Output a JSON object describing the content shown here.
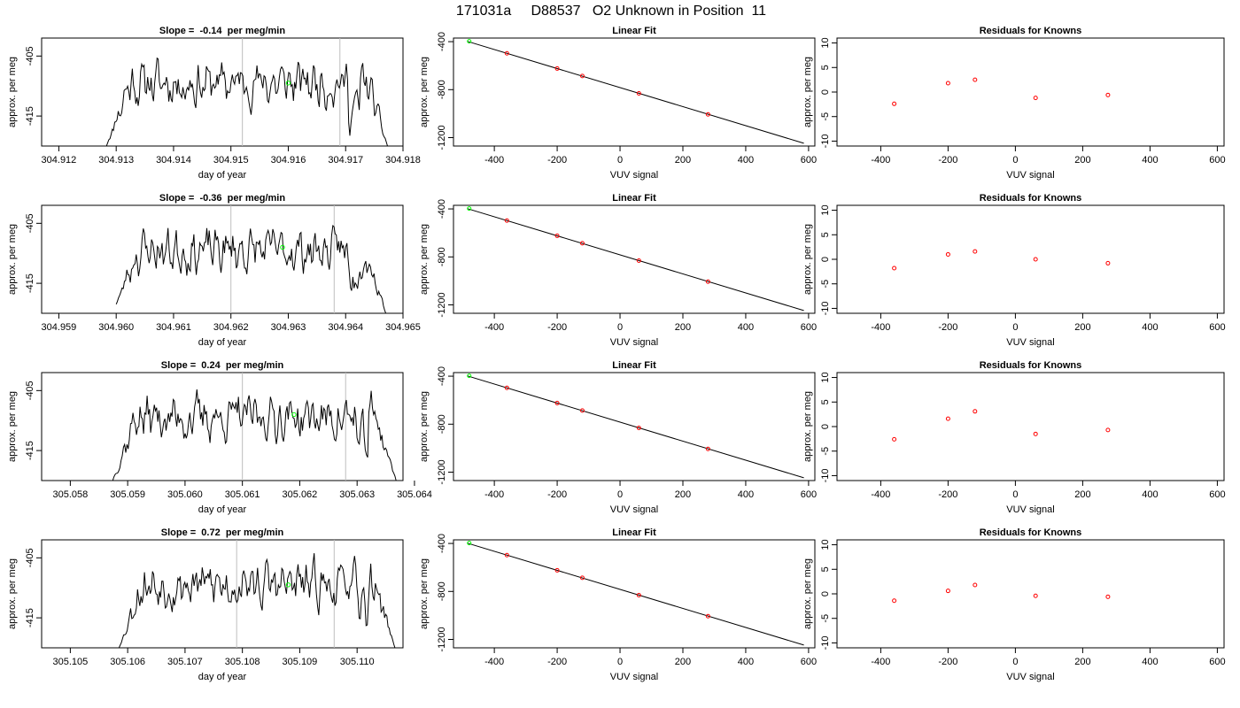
{
  "page_title": "171031a     D88537   O2 Unknown in Position  11",
  "chart_data": [
    {
      "type": "line",
      "row": 1,
      "column": "timeseries",
      "title": "Slope =  -0.14  per meg/min",
      "xlabel": "day of year",
      "ylabel": "approx. per meg",
      "xlim": [
        304.9117,
        304.918
      ],
      "ylim": [
        -420,
        -402
      ],
      "xticks": [
        "304.912",
        "304.913",
        "304.914",
        "304.915",
        "304.916",
        "304.917",
        "304.918"
      ],
      "yticks": [
        "-405",
        "-415"
      ],
      "vlines": [
        304.9152,
        304.9169
      ],
      "marker": {
        "x": 304.916,
        "y": -409.5
      },
      "x_start": 304.91283,
      "x_end": 304.91773,
      "y_start": -420,
      "y_end": -420,
      "n_points": 240,
      "seed": 11
    },
    {
      "type": "scatter",
      "row": 1,
      "column": "fit",
      "title": "Linear Fit",
      "xlabel": "VUV signal",
      "ylabel": "approx. per meg",
      "xlim": [
        -530,
        620
      ],
      "ylim": [
        -1270,
        -370
      ],
      "xticks": [
        "-400",
        "-200",
        "0",
        "200",
        "400",
        "600"
      ],
      "yticks": [
        "-400",
        "-800",
        "-1200"
      ],
      "fit_line": [
        [
          -485,
          -398
        ],
        [
          585,
          -1247
        ]
      ],
      "points": [
        [
          -360,
          -497
        ],
        [
          -200,
          -624
        ],
        [
          -120,
          -686
        ],
        [
          60,
          -831
        ],
        [
          280,
          -1006
        ]
      ],
      "marker": {
        "x": -480,
        "y": -397
      }
    },
    {
      "type": "scatter",
      "row": 1,
      "column": "residuals",
      "title": "Residuals for Knowns",
      "xlabel": "VUV signal",
      "ylabel": "approx. per meg",
      "xlim": [
        -530,
        620
      ],
      "ylim": [
        -11,
        11
      ],
      "xticks": [
        "-400",
        "-200",
        "0",
        "200",
        "400",
        "600"
      ],
      "yticks": [
        "10",
        "5",
        "0",
        "-5",
        "-10"
      ],
      "points": [
        [
          -360,
          -2.4
        ],
        [
          -200,
          1.8
        ],
        [
          -120,
          2.5
        ],
        [
          60,
          -1.2
        ],
        [
          275,
          -0.6
        ]
      ]
    },
    {
      "type": "line",
      "row": 2,
      "column": "timeseries",
      "title": "Slope =  -0.36  per meg/min",
      "xlabel": "day of year",
      "ylabel": "approx. per meg",
      "xlim": [
        304.9587,
        304.965
      ],
      "ylim": [
        -420,
        -402
      ],
      "xticks": [
        "304.959",
        "304.960",
        "304.961",
        "304.962",
        "304.963",
        "304.964",
        "304.965"
      ],
      "yticks": [
        "-405",
        "-415"
      ],
      "vlines": [
        304.962,
        304.9638
      ],
      "marker": {
        "x": 304.9629,
        "y": -409
      },
      "x_start": 304.96,
      "x_end": 304.9647,
      "y_start": -418.5,
      "y_end": -420,
      "n_points": 230,
      "seed": 23
    },
    {
      "type": "scatter",
      "row": 2,
      "column": "fit",
      "title": "Linear Fit",
      "xlabel": "VUV signal",
      "ylabel": "approx. per meg",
      "xlim": [
        -530,
        620
      ],
      "ylim": [
        -1270,
        -370
      ],
      "xticks": [
        "-400",
        "-200",
        "0",
        "200",
        "400",
        "600"
      ],
      "yticks": [
        "-400",
        "-800",
        "-1200"
      ],
      "fit_line": [
        [
          -485,
          -398
        ],
        [
          585,
          -1247
        ]
      ],
      "points": [
        [
          -360,
          -497
        ],
        [
          -200,
          -624
        ],
        [
          -120,
          -686
        ],
        [
          60,
          -831
        ],
        [
          280,
          -1006
        ]
      ],
      "marker": {
        "x": -480,
        "y": -397
      }
    },
    {
      "type": "scatter",
      "row": 2,
      "column": "residuals",
      "title": "Residuals for Knowns",
      "xlabel": "VUV signal",
      "ylabel": "approx. per meg",
      "xlim": [
        -530,
        620
      ],
      "ylim": [
        -11,
        11
      ],
      "xticks": [
        "-400",
        "-200",
        "0",
        "200",
        "400",
        "600"
      ],
      "yticks": [
        "10",
        "5",
        "0",
        "-5",
        "-10"
      ],
      "points": [
        [
          -360,
          -1.8
        ],
        [
          -200,
          1.0
        ],
        [
          -120,
          1.6
        ],
        [
          60,
          0.0
        ],
        [
          275,
          -0.8
        ]
      ]
    },
    {
      "type": "line",
      "row": 3,
      "column": "timeseries",
      "title": "Slope =  0.24  per meg/min",
      "xlabel": "day of year",
      "ylabel": "approx. per meg",
      "xlim": [
        305.0575,
        305.0638
      ],
      "ylim": [
        -420,
        -402
      ],
      "xticks": [
        "305.058",
        "305.059",
        "305.060",
        "305.061",
        "305.062",
        "305.063",
        "305.064"
      ],
      "yticks": [
        "-405",
        "-415"
      ],
      "vlines": [
        305.061,
        305.0628
      ],
      "marker": {
        "x": 305.0619,
        "y": -409
      },
      "x_start": 305.05874,
      "x_end": 305.06368,
      "y_start": -420,
      "y_end": -420,
      "n_points": 240,
      "seed": 37
    },
    {
      "type": "scatter",
      "row": 3,
      "column": "fit",
      "title": "Linear Fit",
      "xlabel": "VUV signal",
      "ylabel": "approx. per meg",
      "xlim": [
        -530,
        620
      ],
      "ylim": [
        -1270,
        -370
      ],
      "xticks": [
        "-400",
        "-200",
        "0",
        "200",
        "400",
        "600"
      ],
      "yticks": [
        "-400",
        "-800",
        "-1200"
      ],
      "fit_line": [
        [
          -485,
          -398
        ],
        [
          585,
          -1247
        ]
      ],
      "points": [
        [
          -360,
          -497
        ],
        [
          -200,
          -624
        ],
        [
          -120,
          -686
        ],
        [
          60,
          -831
        ],
        [
          280,
          -1006
        ]
      ],
      "marker": {
        "x": -480,
        "y": -397
      }
    },
    {
      "type": "scatter",
      "row": 3,
      "column": "residuals",
      "title": "Residuals for Knowns",
      "xlabel": "VUV signal",
      "ylabel": "approx. per meg",
      "xlim": [
        -530,
        620
      ],
      "ylim": [
        -11,
        11
      ],
      "xticks": [
        "-400",
        "-200",
        "0",
        "200",
        "400",
        "600"
      ],
      "yticks": [
        "10",
        "5",
        "0",
        "-5",
        "-10"
      ],
      "points": [
        [
          -360,
          -2.6
        ],
        [
          -200,
          1.6
        ],
        [
          -120,
          3.1
        ],
        [
          60,
          -1.5
        ],
        [
          275,
          -0.7
        ]
      ]
    },
    {
      "type": "line",
      "row": 4,
      "column": "timeseries",
      "title": "Slope =  0.72  per meg/min",
      "xlabel": "day of year",
      "ylabel": "approx. per meg",
      "xlim": [
        305.1045,
        305.1108
      ],
      "ylim": [
        -420,
        -402
      ],
      "xticks": [
        "305.105",
        "305.106",
        "305.107",
        "305.108",
        "305.109",
        "305.110"
      ],
      "yticks": [
        "-405",
        "-415"
      ],
      "vlines": [
        305.1079,
        305.1096
      ],
      "marker": {
        "x": 305.1088,
        "y": -409.5
      },
      "x_start": 305.10585,
      "x_end": 305.11066,
      "y_start": -420,
      "y_end": -420,
      "n_points": 240,
      "seed": 53
    },
    {
      "type": "scatter",
      "row": 4,
      "column": "fit",
      "title": "Linear Fit",
      "xlabel": "VUV signal",
      "ylabel": "approx. per meg",
      "xlim": [
        -530,
        620
      ],
      "ylim": [
        -1270,
        -370
      ],
      "xticks": [
        "-400",
        "-200",
        "0",
        "200",
        "400",
        "600"
      ],
      "yticks": [
        "-400",
        "-800",
        "-1200"
      ],
      "fit_line": [
        [
          -485,
          -398
        ],
        [
          585,
          -1247
        ]
      ],
      "points": [
        [
          -360,
          -497
        ],
        [
          -200,
          -624
        ],
        [
          -120,
          -686
        ],
        [
          60,
          -831
        ],
        [
          280,
          -1006
        ]
      ],
      "marker": {
        "x": -480,
        "y": -397
      }
    },
    {
      "type": "scatter",
      "row": 4,
      "column": "residuals",
      "title": "Residuals for Knowns",
      "xlabel": "VUV signal",
      "ylabel": "approx. per meg",
      "xlim": [
        -530,
        620
      ],
      "ylim": [
        -11,
        11
      ],
      "xticks": [
        "-400",
        "-200",
        "0",
        "200",
        "400",
        "600"
      ],
      "yticks": [
        "10",
        "5",
        "0",
        "-5",
        "-10"
      ],
      "points": [
        [
          -360,
          -1.4
        ],
        [
          -200,
          0.6
        ],
        [
          -120,
          1.8
        ],
        [
          60,
          -0.4
        ],
        [
          275,
          -0.6
        ]
      ]
    }
  ],
  "colors": {
    "series_line": "#000000",
    "known_points": "#ff0000",
    "unknown_marker": "#00ff00",
    "vline": "#bebebe",
    "frame": "#000000"
  }
}
